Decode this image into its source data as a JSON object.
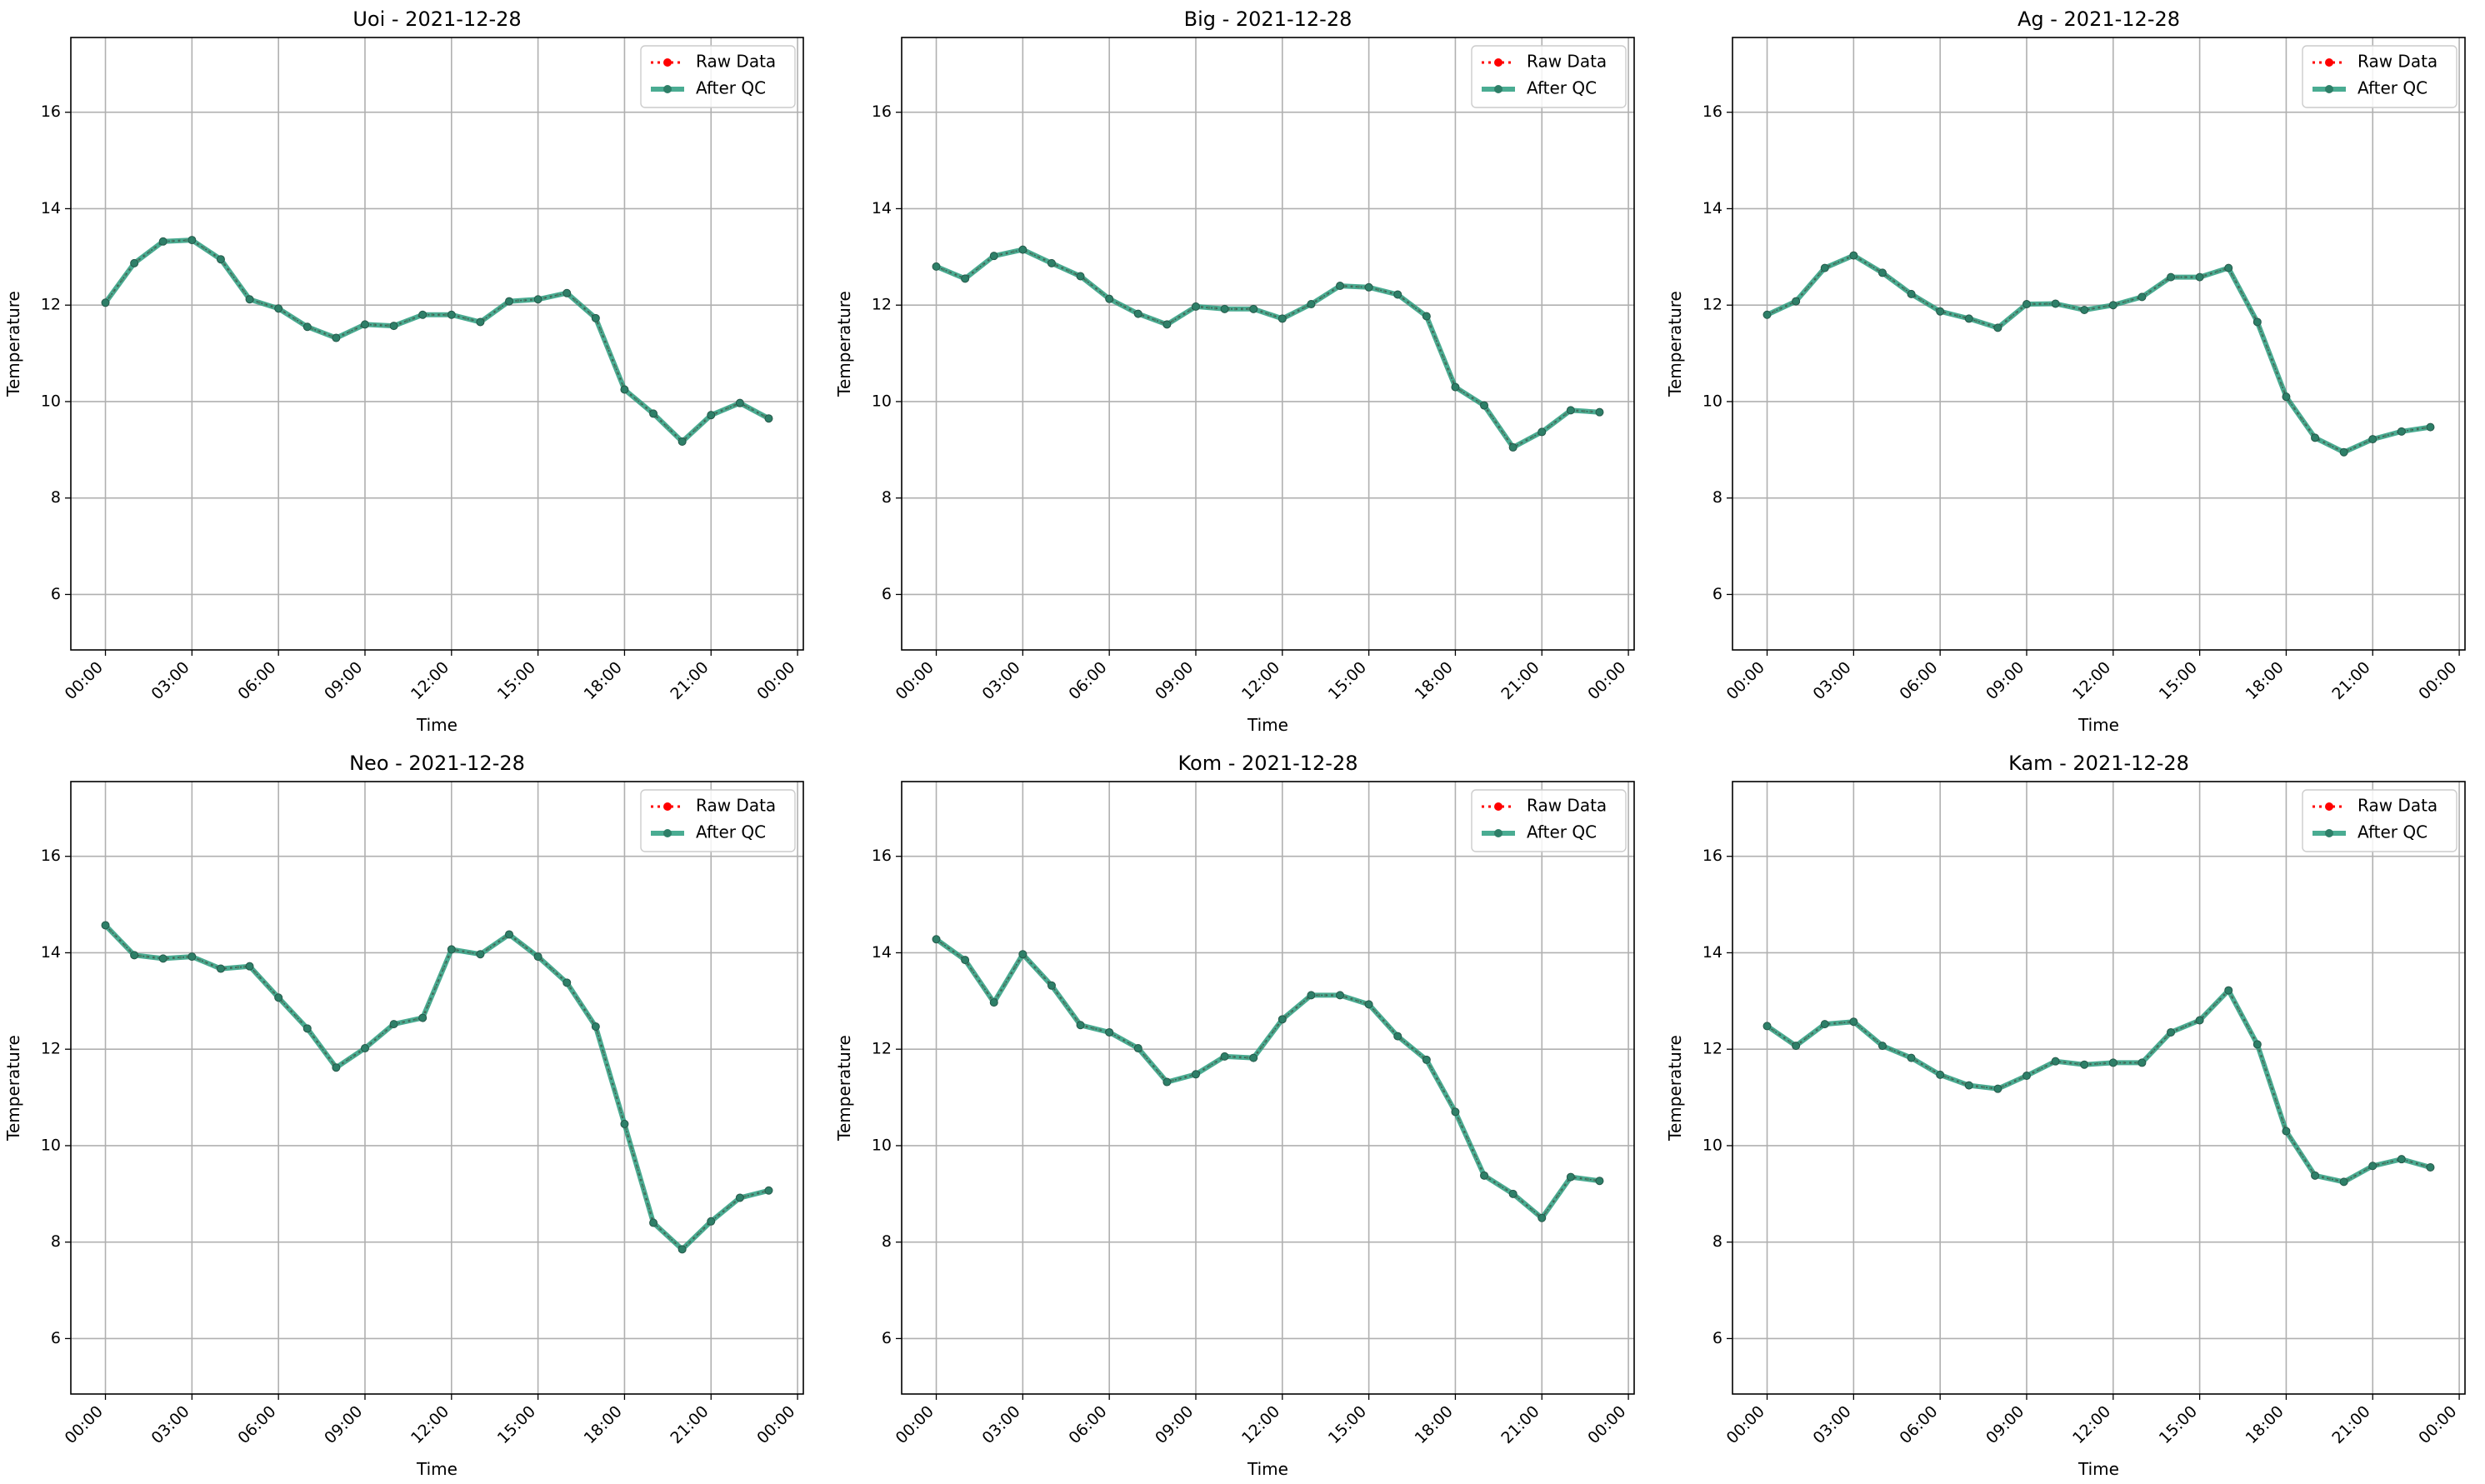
{
  "chart_data": [
    {
      "type": "line",
      "title": "Uoi - 2021-12-28",
      "xlabel": "Time",
      "ylabel": "Temperature",
      "x": [
        "00:00",
        "01:00",
        "02:00",
        "03:00",
        "04:00",
        "05:00",
        "06:00",
        "07:00",
        "08:00",
        "09:00",
        "10:00",
        "11:00",
        "12:00",
        "13:00",
        "14:00",
        "15:00",
        "16:00",
        "17:00",
        "18:00",
        "19:00",
        "20:00",
        "21:00",
        "22:00",
        "23:00"
      ],
      "xticks": [
        "00:00",
        "03:00",
        "06:00",
        "09:00",
        "12:00",
        "15:00",
        "18:00",
        "21:00",
        "00:00"
      ],
      "yticks": [
        "6",
        "8",
        "10",
        "12",
        "14",
        "16"
      ],
      "ylim": [
        4.85,
        17.55
      ],
      "xlim_hours": [
        -1.2,
        24.2
      ],
      "grid": true,
      "legend": "top-right",
      "series": [
        {
          "name": "Raw Data",
          "color": "#ff0000",
          "values": [
            12.05,
            12.87,
            13.32,
            13.35,
            12.95,
            12.12,
            11.93,
            11.55,
            11.32,
            11.6,
            11.57,
            11.8,
            11.8,
            11.65,
            12.08,
            12.12,
            12.25,
            11.73,
            10.25,
            9.75,
            9.17,
            9.72,
            9.97,
            9.65
          ]
        },
        {
          "name": "After QC",
          "color": "#2a9d7f",
          "values": [
            12.05,
            12.87,
            13.32,
            13.35,
            12.95,
            12.12,
            11.93,
            11.55,
            11.32,
            11.6,
            11.57,
            11.8,
            11.8,
            11.65,
            12.08,
            12.12,
            12.25,
            11.73,
            10.25,
            9.75,
            9.17,
            9.72,
            9.97,
            9.65
          ]
        }
      ]
    },
    {
      "type": "line",
      "title": "Big - 2021-12-28",
      "xlabel": "Time",
      "ylabel": "Temperature",
      "x": [
        "00:00",
        "01:00",
        "02:00",
        "03:00",
        "04:00",
        "05:00",
        "06:00",
        "07:00",
        "08:00",
        "09:00",
        "10:00",
        "11:00",
        "12:00",
        "13:00",
        "14:00",
        "15:00",
        "16:00",
        "17:00",
        "18:00",
        "19:00",
        "20:00",
        "21:00",
        "22:00",
        "23:00"
      ],
      "xticks": [
        "00:00",
        "03:00",
        "06:00",
        "09:00",
        "12:00",
        "15:00",
        "18:00",
        "21:00",
        "00:00"
      ],
      "yticks": [
        "6",
        "8",
        "10",
        "12",
        "14",
        "16"
      ],
      "ylim": [
        4.85,
        17.55
      ],
      "xlim_hours": [
        -1.2,
        24.2
      ],
      "grid": true,
      "legend": "top-right",
      "series": [
        {
          "name": "Raw Data",
          "color": "#ff0000",
          "values": [
            12.8,
            12.55,
            13.02,
            13.15,
            12.87,
            12.6,
            12.13,
            11.82,
            11.6,
            11.97,
            11.92,
            11.92,
            11.72,
            12.02,
            12.4,
            12.37,
            12.22,
            11.77,
            10.3,
            9.92,
            9.05,
            9.37,
            9.82,
            9.78
          ]
        },
        {
          "name": "After QC",
          "color": "#2a9d7f",
          "values": [
            12.8,
            12.55,
            13.02,
            13.15,
            12.87,
            12.6,
            12.13,
            11.82,
            11.6,
            11.97,
            11.92,
            11.92,
            11.72,
            12.02,
            12.4,
            12.37,
            12.22,
            11.77,
            10.3,
            9.92,
            9.05,
            9.37,
            9.82,
            9.78
          ]
        }
      ]
    },
    {
      "type": "line",
      "title": "Ag - 2021-12-28",
      "xlabel": "Time",
      "ylabel": "Temperature",
      "x": [
        "00:00",
        "01:00",
        "02:00",
        "03:00",
        "04:00",
        "05:00",
        "06:00",
        "07:00",
        "08:00",
        "09:00",
        "10:00",
        "11:00",
        "12:00",
        "13:00",
        "14:00",
        "15:00",
        "16:00",
        "17:00",
        "18:00",
        "19:00",
        "20:00",
        "21:00",
        "22:00",
        "23:00"
      ],
      "xticks": [
        "00:00",
        "03:00",
        "06:00",
        "09:00",
        "12:00",
        "15:00",
        "18:00",
        "21:00",
        "00:00"
      ],
      "yticks": [
        "6",
        "8",
        "10",
        "12",
        "14",
        "16"
      ],
      "ylim": [
        4.85,
        17.55
      ],
      "xlim_hours": [
        -1.2,
        24.2
      ],
      "grid": true,
      "legend": "top-right",
      "series": [
        {
          "name": "Raw Data",
          "color": "#ff0000",
          "values": [
            11.8,
            12.08,
            12.77,
            13.03,
            12.67,
            12.23,
            11.87,
            11.72,
            11.53,
            12.02,
            12.03,
            11.9,
            12.0,
            12.17,
            12.58,
            12.58,
            12.77,
            11.65,
            10.1,
            9.25,
            8.95,
            9.22,
            9.38,
            9.47
          ]
        },
        {
          "name": "After QC",
          "color": "#2a9d7f",
          "values": [
            11.8,
            12.08,
            12.77,
            13.03,
            12.67,
            12.23,
            11.87,
            11.72,
            11.53,
            12.02,
            12.03,
            11.9,
            12.0,
            12.17,
            12.58,
            12.58,
            12.77,
            11.65,
            10.1,
            9.25,
            8.95,
            9.22,
            9.38,
            9.47
          ]
        }
      ]
    },
    {
      "type": "line",
      "title": "Neo - 2021-12-28",
      "xlabel": "Time",
      "ylabel": "Temperature",
      "x": [
        "00:00",
        "01:00",
        "02:00",
        "03:00",
        "04:00",
        "05:00",
        "06:00",
        "07:00",
        "08:00",
        "09:00",
        "10:00",
        "11:00",
        "12:00",
        "13:00",
        "14:00",
        "15:00",
        "16:00",
        "17:00",
        "18:00",
        "19:00",
        "20:00",
        "21:00",
        "22:00",
        "23:00"
      ],
      "xticks": [
        "00:00",
        "03:00",
        "06:00",
        "09:00",
        "12:00",
        "15:00",
        "18:00",
        "21:00",
        "00:00"
      ],
      "yticks": [
        "6",
        "8",
        "10",
        "12",
        "14",
        "16"
      ],
      "ylim": [
        4.85,
        17.55
      ],
      "xlim_hours": [
        -1.2,
        24.2
      ],
      "grid": true,
      "legend": "top-right",
      "series": [
        {
          "name": "Raw Data",
          "color": "#ff0000",
          "values": [
            14.57,
            13.95,
            13.88,
            13.92,
            13.67,
            13.72,
            13.07,
            12.43,
            11.62,
            12.02,
            12.52,
            12.65,
            14.07,
            13.97,
            14.38,
            13.92,
            13.38,
            12.47,
            10.45,
            8.4,
            7.85,
            8.43,
            8.92,
            9.07
          ]
        },
        {
          "name": "After QC",
          "color": "#2a9d7f",
          "values": [
            14.57,
            13.95,
            13.88,
            13.92,
            13.67,
            13.72,
            13.07,
            12.43,
            11.62,
            12.02,
            12.52,
            12.65,
            14.07,
            13.97,
            14.38,
            13.92,
            13.38,
            12.47,
            10.45,
            8.4,
            7.85,
            8.43,
            8.92,
            9.07
          ]
        }
      ]
    },
    {
      "type": "line",
      "title": "Kom - 2021-12-28",
      "xlabel": "Time",
      "ylabel": "Temperature",
      "x": [
        "00:00",
        "01:00",
        "02:00",
        "03:00",
        "04:00",
        "05:00",
        "06:00",
        "07:00",
        "08:00",
        "09:00",
        "10:00",
        "11:00",
        "12:00",
        "13:00",
        "14:00",
        "15:00",
        "16:00",
        "17:00",
        "18:00",
        "19:00",
        "20:00",
        "21:00",
        "22:00",
        "23:00"
      ],
      "xticks": [
        "00:00",
        "03:00",
        "06:00",
        "09:00",
        "12:00",
        "15:00",
        "18:00",
        "21:00",
        "00:00"
      ],
      "yticks": [
        "6",
        "8",
        "10",
        "12",
        "14",
        "16"
      ],
      "ylim": [
        4.85,
        17.55
      ],
      "xlim_hours": [
        -1.2,
        24.2
      ],
      "grid": true,
      "legend": "top-right",
      "series": [
        {
          "name": "Raw Data",
          "color": "#ff0000",
          "values": [
            14.28,
            13.85,
            12.97,
            13.97,
            13.32,
            12.5,
            12.35,
            12.02,
            11.32,
            11.48,
            11.85,
            11.82,
            12.62,
            13.12,
            13.12,
            12.93,
            12.27,
            11.78,
            10.7,
            9.38,
            9.0,
            8.5,
            9.35,
            9.27
          ]
        },
        {
          "name": "After QC",
          "color": "#2a9d7f",
          "values": [
            14.28,
            13.85,
            12.97,
            13.97,
            13.32,
            12.5,
            12.35,
            12.02,
            11.32,
            11.48,
            11.85,
            11.82,
            12.62,
            13.12,
            13.12,
            12.93,
            12.27,
            11.78,
            10.7,
            9.38,
            9.0,
            8.5,
            9.35,
            9.27
          ]
        }
      ]
    },
    {
      "type": "line",
      "title": "Kam - 2021-12-28",
      "xlabel": "Time",
      "ylabel": "Temperature",
      "x": [
        "00:00",
        "01:00",
        "02:00",
        "03:00",
        "04:00",
        "05:00",
        "06:00",
        "07:00",
        "08:00",
        "09:00",
        "10:00",
        "11:00",
        "12:00",
        "13:00",
        "14:00",
        "15:00",
        "16:00",
        "17:00",
        "18:00",
        "19:00",
        "20:00",
        "21:00",
        "22:00",
        "23:00"
      ],
      "xticks": [
        "00:00",
        "03:00",
        "06:00",
        "09:00",
        "12:00",
        "15:00",
        "18:00",
        "21:00",
        "00:00"
      ],
      "yticks": [
        "6",
        "8",
        "10",
        "12",
        "14",
        "16"
      ],
      "ylim": [
        4.85,
        17.55
      ],
      "xlim_hours": [
        -1.2,
        24.2
      ],
      "grid": true,
      "legend": "top-right",
      "series": [
        {
          "name": "Raw Data",
          "color": "#ff0000",
          "values": [
            12.48,
            12.07,
            12.52,
            12.57,
            12.07,
            11.82,
            11.47,
            11.25,
            11.18,
            11.45,
            11.75,
            11.68,
            11.72,
            11.72,
            12.35,
            12.6,
            13.22,
            12.1,
            10.3,
            9.38,
            9.25,
            9.58,
            9.72,
            9.55
          ]
        },
        {
          "name": "After QC",
          "color": "#2a9d7f",
          "values": [
            12.48,
            12.07,
            12.52,
            12.57,
            12.07,
            11.82,
            11.47,
            11.25,
            11.18,
            11.45,
            11.75,
            11.68,
            11.72,
            11.72,
            12.35,
            12.6,
            13.22,
            12.1,
            10.3,
            9.38,
            9.25,
            9.58,
            9.72,
            9.55
          ]
        }
      ]
    }
  ]
}
